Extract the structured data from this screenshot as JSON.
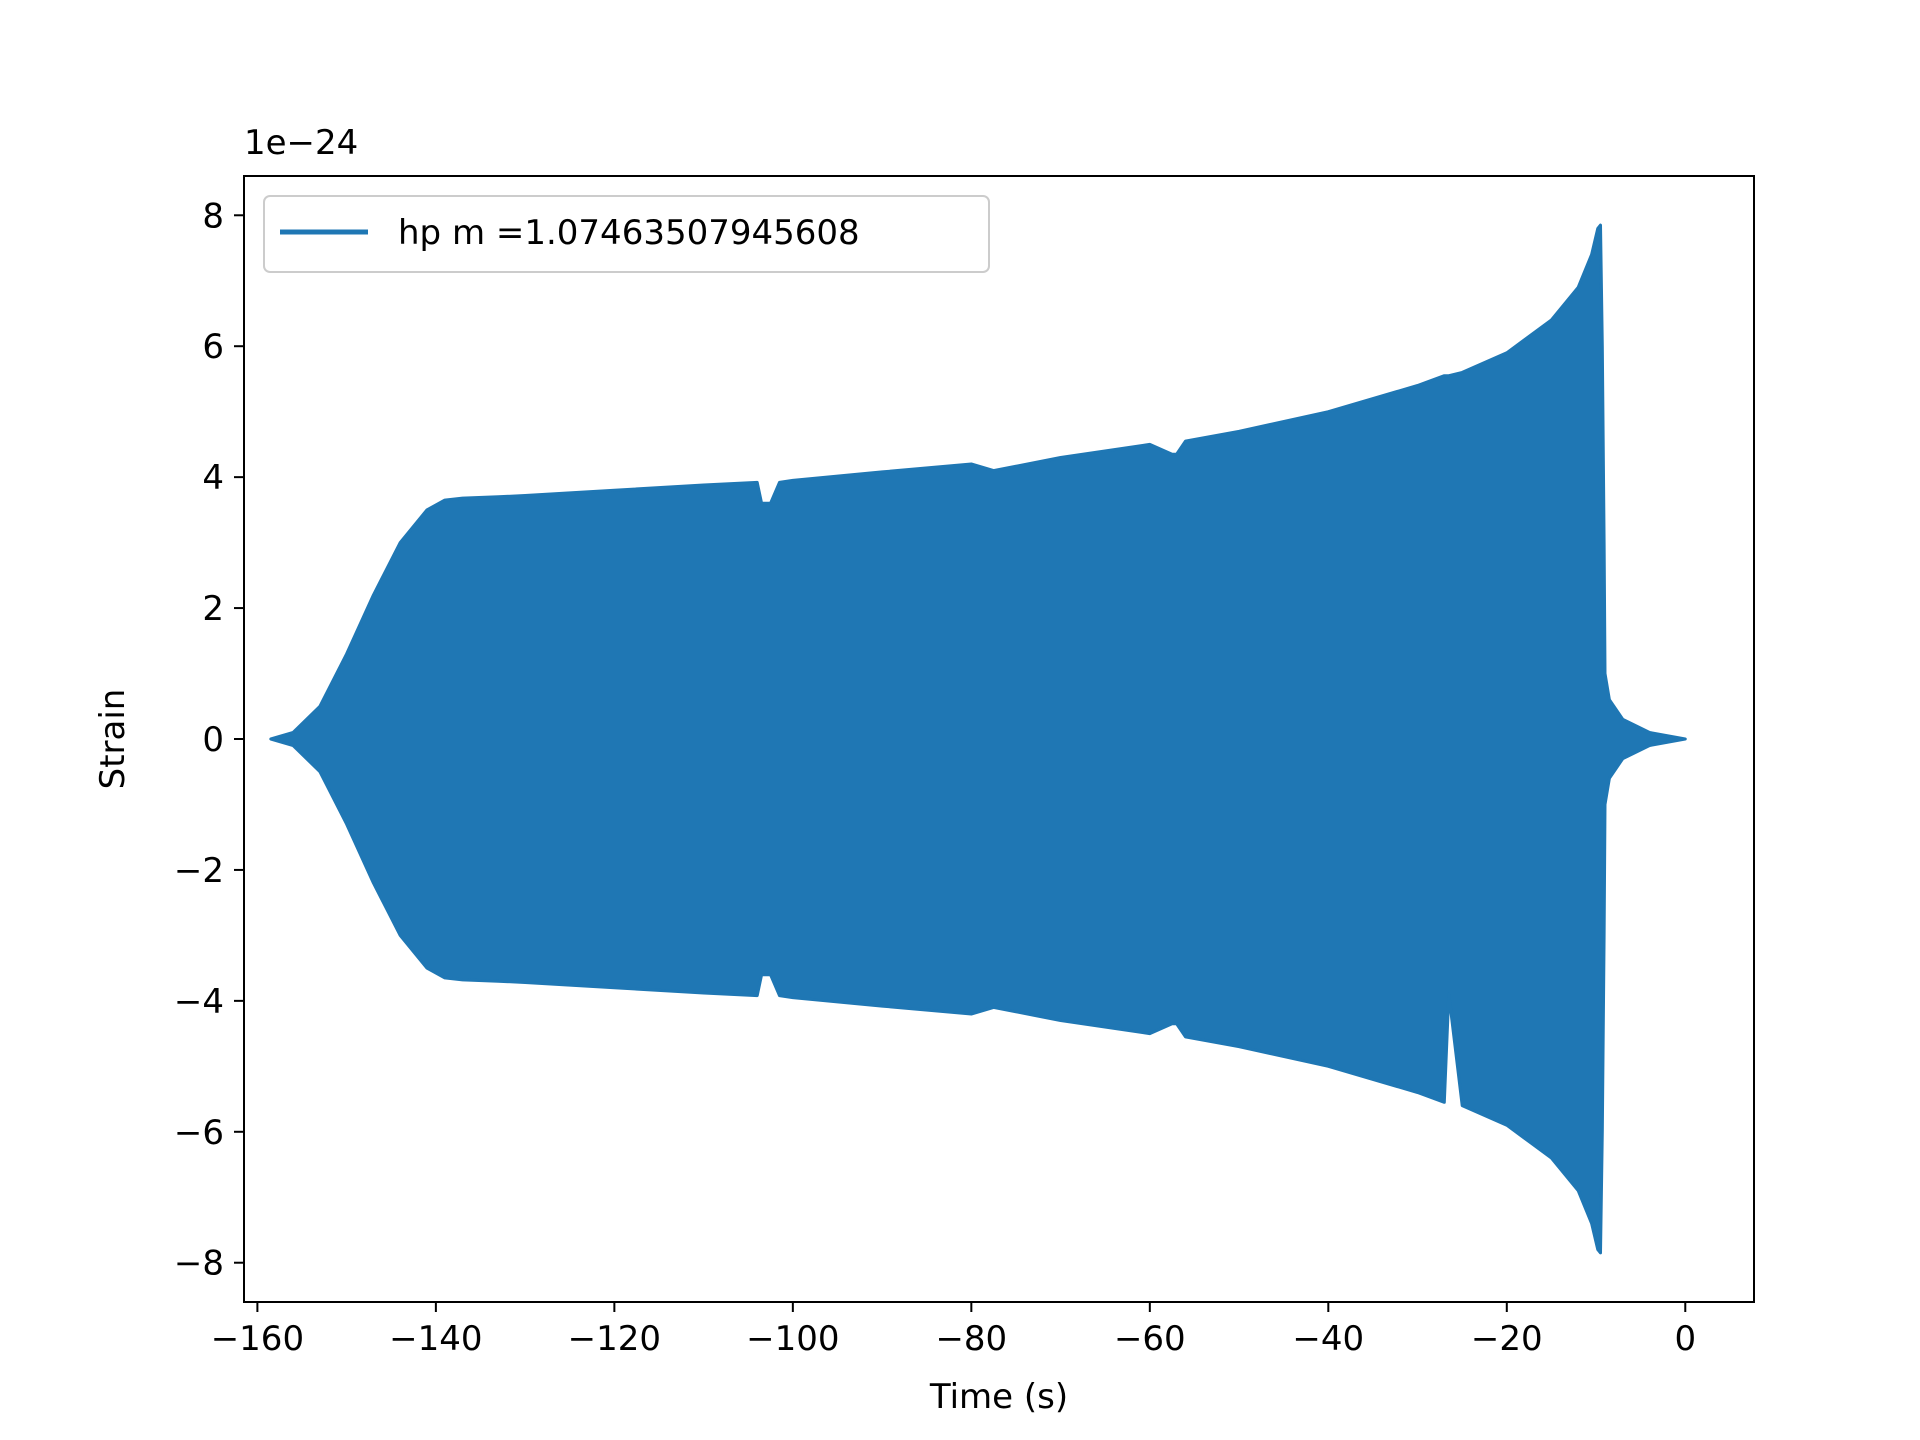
{
  "chart_data": {
    "type": "line",
    "title": "",
    "xlabel": "Time (s)",
    "ylabel": "Strain",
    "y_offset_label": "1e−24",
    "xlim": [
      -161.5,
      7.7
    ],
    "ylim": [
      -8.6,
      8.6
    ],
    "x_ticks": [
      -160,
      -140,
      -120,
      -100,
      -80,
      -60,
      -40,
      -20,
      0
    ],
    "x_tick_labels": [
      "−160",
      "−140",
      "−120",
      "−100",
      "−80",
      "−60",
      "−40",
      "−20",
      "0"
    ],
    "y_ticks": [
      -8,
      -6,
      -4,
      -2,
      0,
      2,
      4,
      6,
      8
    ],
    "y_tick_labels": [
      "−8",
      "−6",
      "−4",
      "−2",
      "0",
      "2",
      "4",
      "6",
      "8"
    ],
    "grid": false,
    "legend_position": "top-left",
    "series": [
      {
        "name": "hp m =1.07463507945608",
        "color": "#1f77b4",
        "x": [
          -158.5,
          -156,
          -153,
          -150,
          -147,
          -144,
          -141,
          -139,
          -137,
          -133,
          -130,
          -120,
          -110,
          -104,
          -103.5,
          -102.5,
          -101.5,
          -100,
          -90,
          -80,
          -77.5,
          -70,
          -60,
          -57.5,
          -57,
          -56,
          -50,
          -40,
          -30,
          -27,
          -26.5,
          -25,
          -20,
          -15,
          -12,
          -10.5,
          -9.8,
          -9.5,
          -9.3,
          -9.1,
          -9.0,
          -8.5,
          -7,
          -4,
          0
        ],
        "upper": [
          0.0,
          0.1,
          0.5,
          1.3,
          2.2,
          3.0,
          3.5,
          3.65,
          3.68,
          3.7,
          3.72,
          3.8,
          3.88,
          3.92,
          3.6,
          3.6,
          3.92,
          3.95,
          4.08,
          4.2,
          4.1,
          4.3,
          4.5,
          4.35,
          4.35,
          4.55,
          4.7,
          5.0,
          5.4,
          5.55,
          5.55,
          5.6,
          5.9,
          6.4,
          6.9,
          7.4,
          7.8,
          7.85,
          6.0,
          3.0,
          1.0,
          0.6,
          0.3,
          0.1,
          0.0
        ],
        "lower": [
          0.0,
          -0.1,
          -0.5,
          -1.3,
          -2.2,
          -3.0,
          -3.5,
          -3.65,
          -3.68,
          -3.7,
          -3.72,
          -3.8,
          -3.88,
          -3.92,
          -3.6,
          -3.6,
          -3.92,
          -3.95,
          -4.08,
          -4.2,
          -4.1,
          -4.3,
          -4.5,
          -4.35,
          -4.35,
          -4.55,
          -4.7,
          -5.0,
          -5.4,
          -5.55,
          -3.9,
          -5.6,
          -5.9,
          -6.4,
          -6.9,
          -7.4,
          -7.8,
          -7.85,
          -6.0,
          -3.0,
          -1.0,
          -0.6,
          -0.3,
          -0.1,
          0.0
        ]
      }
    ]
  }
}
